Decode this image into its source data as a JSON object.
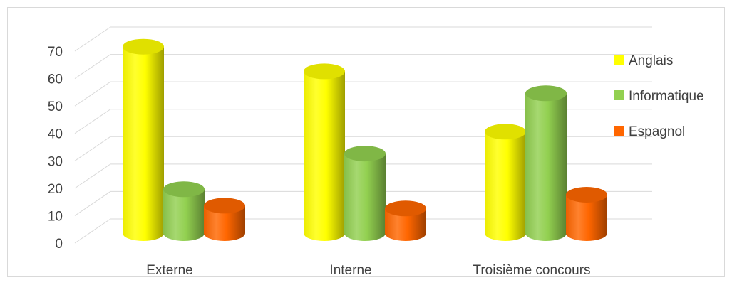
{
  "chart_data": {
    "type": "bar",
    "title": "",
    "xlabel": "",
    "ylabel": "",
    "ylim": [
      0,
      70
    ],
    "yticks": [
      0,
      10,
      20,
      30,
      40,
      50,
      60,
      70
    ],
    "grid": true,
    "legend": "right",
    "style": "3d-cylinder",
    "categories": [
      "Externe",
      "Interne",
      "Troisième concours"
    ],
    "series": [
      {
        "name": "Anglais",
        "color": "#FFFF00",
        "values": [
          68,
          59,
          37
        ]
      },
      {
        "name": "Informatique",
        "color": "#92D050",
        "values": [
          16,
          29,
          51
        ]
      },
      {
        "name": "Espagnol",
        "color": "#FF6600",
        "values": [
          10,
          9,
          14
        ]
      }
    ]
  }
}
